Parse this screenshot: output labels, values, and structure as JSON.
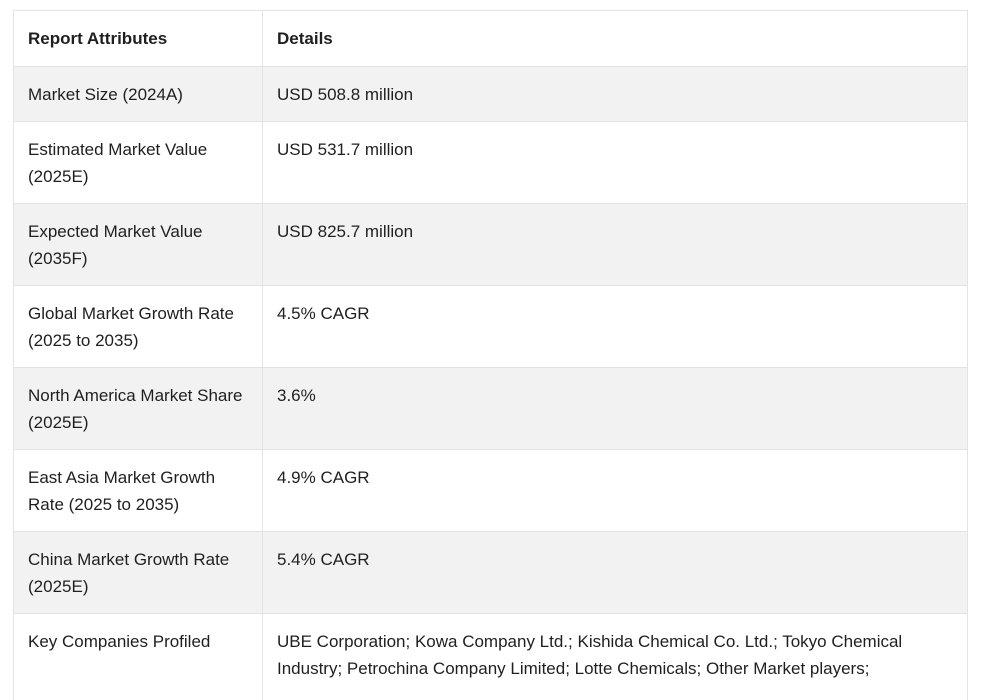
{
  "table": {
    "headers": {
      "attribute": "Report Attributes",
      "details": "Details"
    },
    "rows": [
      {
        "attribute": "Market Size (2024A)",
        "details": "USD 508.8 million"
      },
      {
        "attribute": "Estimated Market Value (2025E)",
        "details": "USD 531.7 million"
      },
      {
        "attribute": "Expected Market Value (2035F)",
        "details": "USD 825.7 million"
      },
      {
        "attribute": "Global Market Growth Rate (2025 to 2035)",
        "details": "4.5% CAGR"
      },
      {
        "attribute": "North America Market Share (2025E)",
        "details": "3.6%"
      },
      {
        "attribute": "East Asia Market Growth Rate (2025 to 2035)",
        "details": "4.9% CAGR"
      },
      {
        "attribute": "China Market Growth Rate (2025E)",
        "details": "5.4% CAGR"
      },
      {
        "attribute": "Key Companies Profiled",
        "details": "UBE Corporation; Kowa Company Ltd.; Kishida Chemical Co. Ltd.; Tokyo Chemical Industry; Petrochina Company Limited; Lotte Chemicals; Other Market players;"
      }
    ]
  }
}
